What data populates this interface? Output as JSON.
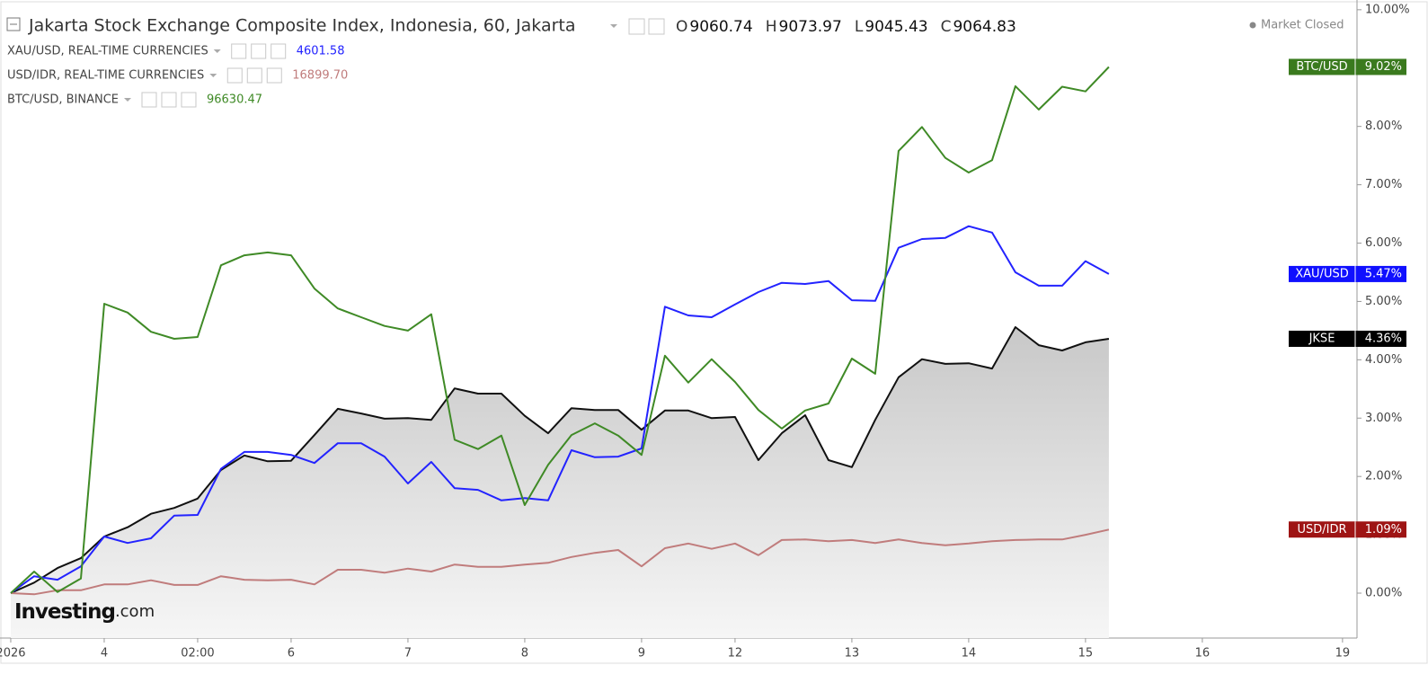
{
  "chart_data": {
    "type": "line",
    "title": "Jakarta Stock Exchange Composite Index, Indonesia, 60, Jakarta",
    "ohlc": [
      {
        "key": "O",
        "value": "9060.74"
      },
      {
        "key": "H",
        "value": "9073.97"
      },
      {
        "key": "L",
        "value": "9045.43"
      },
      {
        "key": "C",
        "value": "9064.83"
      }
    ],
    "status": "Market Closed",
    "logo": {
      "brand": "Investing",
      "suffix": ".com"
    },
    "x": [
      0,
      1,
      2,
      3,
      4,
      5,
      6,
      7,
      8,
      9,
      10,
      11,
      12,
      13,
      14,
      15,
      16,
      17,
      18,
      19,
      20,
      21,
      22,
      23,
      24,
      25,
      26,
      27,
      28,
      29,
      30,
      31,
      32,
      33,
      34,
      35,
      36,
      37,
      38,
      39,
      40,
      41,
      42,
      43,
      44,
      45,
      46,
      47
    ],
    "xlim": [
      -0.46,
      57.62
    ],
    "xticks": [
      {
        "value": 0,
        "label": "2026"
      },
      {
        "value": 4,
        "label": "4"
      },
      {
        "value": 8,
        "label": "02:00"
      },
      {
        "value": 12,
        "label": "6"
      },
      {
        "value": 17,
        "label": "7"
      },
      {
        "value": 22,
        "label": "8"
      },
      {
        "value": 27,
        "label": "9"
      },
      {
        "value": 31,
        "label": "12"
      },
      {
        "value": 36,
        "label": "13"
      },
      {
        "value": 41,
        "label": "14"
      },
      {
        "value": 46,
        "label": "15"
      },
      {
        "value": 51,
        "label": "16"
      },
      {
        "value": 57,
        "label": "19"
      }
    ],
    "ylim": [
      -0.77,
      10.09
    ],
    "yticks": [
      {
        "value": 0,
        "label": "0.00%"
      },
      {
        "value": 1,
        "label": "1.00%"
      },
      {
        "value": 2,
        "label": "2.00%"
      },
      {
        "value": 3,
        "label": "3.00%"
      },
      {
        "value": 4,
        "label": "4.00%"
      },
      {
        "value": 5,
        "label": "5.00%"
      },
      {
        "value": 6,
        "label": "6.00%"
      },
      {
        "value": 7,
        "label": "7.00%"
      },
      {
        "value": 8,
        "label": "8.00%"
      },
      {
        "value": 9,
        "label": "9.00%"
      },
      {
        "value": 10,
        "label": "10.00%"
      }
    ],
    "series": [
      {
        "tag": "JKSE",
        "color": "#111111",
        "tag_color": "#000000",
        "area": true,
        "values": [
          0,
          0.18,
          0.43,
          0.6,
          0.97,
          1.13,
          1.36,
          1.46,
          1.62,
          2.11,
          2.36,
          2.26,
          2.27,
          2.71,
          3.16,
          3.08,
          2.99,
          3.0,
          2.97,
          3.51,
          3.42,
          3.42,
          3.04,
          2.74,
          3.17,
          3.14,
          3.14,
          2.8,
          3.13,
          3.13,
          3.0,
          3.02,
          2.28,
          2.74,
          3.05,
          2.28,
          2.16,
          2.97,
          3.7,
          4.01,
          3.93,
          3.94,
          3.85,
          4.56,
          4.25,
          4.16,
          4.3,
          4.36
        ],
        "value_labels": [
          null,
          null,
          null,
          null,
          null,
          null,
          null,
          null,
          null,
          null,
          null,
          null,
          null,
          null,
          null,
          null,
          null,
          null,
          null,
          null,
          null,
          null,
          null,
          null,
          null,
          null,
          null,
          null,
          null,
          null,
          null,
          null,
          null,
          null,
          null,
          null,
          null,
          null,
          null,
          null,
          null,
          null,
          null,
          null,
          null,
          null,
          null,
          "4.36%"
        ]
      },
      {
        "name": "XAU/USD, REAL-TIME CURRENCIES",
        "tag": "XAU/USD",
        "price": "4601.58",
        "color": "#2323ff",
        "tag_color": "#1010ff",
        "values": [
          0,
          0.29,
          0.23,
          0.46,
          0.97,
          0.86,
          0.94,
          1.33,
          1.34,
          2.13,
          2.42,
          2.42,
          2.37,
          2.23,
          2.57,
          2.57,
          2.34,
          1.88,
          2.25,
          1.8,
          1.77,
          1.59,
          1.63,
          1.59,
          2.45,
          2.33,
          2.34,
          2.48,
          4.91,
          4.76,
          4.73,
          4.95,
          5.16,
          5.32,
          5.3,
          5.35,
          5.02,
          5.01,
          5.92,
          6.07,
          6.09,
          6.29,
          6.18,
          5.5,
          5.27,
          5.27,
          5.69,
          5.47
        ],
        "value_labels": [
          null,
          null,
          null,
          null,
          null,
          null,
          null,
          null,
          null,
          null,
          null,
          null,
          null,
          null,
          null,
          null,
          null,
          null,
          null,
          null,
          null,
          null,
          null,
          null,
          null,
          null,
          null,
          null,
          null,
          null,
          null,
          null,
          null,
          null,
          null,
          null,
          null,
          null,
          null,
          null,
          null,
          null,
          null,
          null,
          null,
          null,
          null,
          "5.47%"
        ]
      },
      {
        "name": "USD/IDR, REAL-TIME CURRENCIES",
        "tag": "USD/IDR",
        "price": "16899.70",
        "color": "#c07c7c",
        "tag_color": "#9e1414",
        "values": [
          0,
          -0.02,
          0.05,
          0.05,
          0.15,
          0.15,
          0.22,
          0.14,
          0.14,
          0.29,
          0.23,
          0.22,
          0.23,
          0.15,
          0.4,
          0.4,
          0.35,
          0.42,
          0.37,
          0.49,
          0.45,
          0.45,
          0.49,
          0.52,
          0.62,
          0.69,
          0.74,
          0.46,
          0.77,
          0.85,
          0.76,
          0.85,
          0.65,
          0.91,
          0.92,
          0.89,
          0.91,
          0.86,
          0.92,
          0.86,
          0.82,
          0.85,
          0.89,
          0.91,
          0.92,
          0.92,
          1.0,
          1.09
        ],
        "value_labels": [
          null,
          null,
          null,
          null,
          null,
          null,
          null,
          null,
          null,
          null,
          null,
          null,
          null,
          null,
          null,
          null,
          null,
          null,
          null,
          null,
          null,
          null,
          null,
          null,
          null,
          null,
          null,
          null,
          null,
          null,
          null,
          null,
          null,
          null,
          null,
          null,
          null,
          null,
          null,
          null,
          null,
          null,
          null,
          null,
          null,
          null,
          null,
          "1.09%"
        ]
      },
      {
        "name": "BTC/USD, BINANCE",
        "tag": "BTC/USD",
        "price": "96630.47",
        "color": "#3f8a26",
        "tag_color": "#3a7a1e",
        "values": [
          0,
          0.37,
          0.02,
          0.25,
          4.96,
          4.81,
          4.48,
          4.36,
          4.39,
          5.62,
          5.79,
          5.84,
          5.79,
          5.22,
          4.88,
          4.73,
          4.58,
          4.5,
          4.78,
          2.63,
          2.47,
          2.7,
          1.51,
          2.2,
          2.71,
          2.91,
          2.7,
          2.37,
          4.07,
          3.61,
          4.01,
          3.62,
          3.14,
          2.82,
          3.13,
          3.25,
          4.02,
          3.76,
          7.58,
          7.99,
          7.46,
          7.21,
          7.42,
          8.69,
          8.29,
          8.68,
          8.6,
          9.02
        ],
        "value_labels": [
          null,
          null,
          null,
          null,
          null,
          null,
          null,
          null,
          null,
          null,
          null,
          null,
          null,
          null,
          null,
          null,
          null,
          null,
          null,
          null,
          null,
          null,
          null,
          null,
          null,
          null,
          null,
          null,
          null,
          null,
          null,
          null,
          null,
          null,
          null,
          null,
          null,
          null,
          null,
          null,
          null,
          null,
          null,
          null,
          null,
          null,
          null,
          "9.02%"
        ]
      }
    ]
  }
}
